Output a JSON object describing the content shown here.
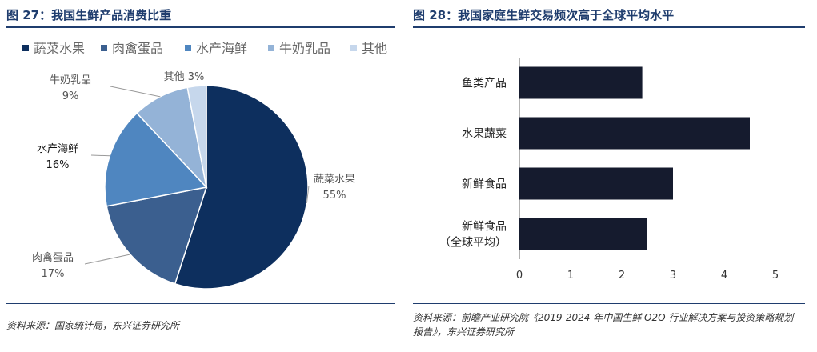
{
  "left": {
    "figure_title": "图 27：我国生鲜产品消费比重",
    "source": "资料来源：国家统计局，东兴证券研究所"
  },
  "right": {
    "figure_title": "图 28：我国家庭生鲜交易频次高于全球平均水平",
    "source": "资料来源：前瞻产业研究院《2019-2024 年中国生鲜 O2O 行业解决方案与投资策略规划报告》，东兴证券研究所"
  },
  "chart_data": [
    {
      "type": "pie",
      "legend_position": "top",
      "slices": [
        {
          "label": "蔬菜水果",
          "value": 55,
          "value_label": "55%",
          "color": "#0d2f5e"
        },
        {
          "label": "肉禽蛋品",
          "value": 17,
          "value_label": "17%",
          "color": "#3b5f8f"
        },
        {
          "label": "水产海鲜",
          "value": 16,
          "value_label": "16%",
          "color": "#4f86c0"
        },
        {
          "label": "牛奶乳品",
          "value": 9,
          "value_label": "9%",
          "color": "#94b3d7"
        },
        {
          "label": "其他",
          "value": 3,
          "value_label": "3%",
          "color": "#c6d7ec"
        }
      ]
    },
    {
      "type": "bar",
      "orientation": "horizontal",
      "categories": [
        [
          "鱼类产品"
        ],
        [
          "水果蔬菜"
        ],
        [
          "新鲜食品"
        ],
        [
          "新鲜食品",
          "（全球平均）"
        ]
      ],
      "values": [
        2.4,
        4.5,
        3.0,
        2.5
      ],
      "bar_color": "#151b2e",
      "xlim": [
        0,
        5
      ],
      "xticks": [
        "0",
        "1",
        "2",
        "3",
        "4",
        "5"
      ],
      "grid": false
    }
  ]
}
